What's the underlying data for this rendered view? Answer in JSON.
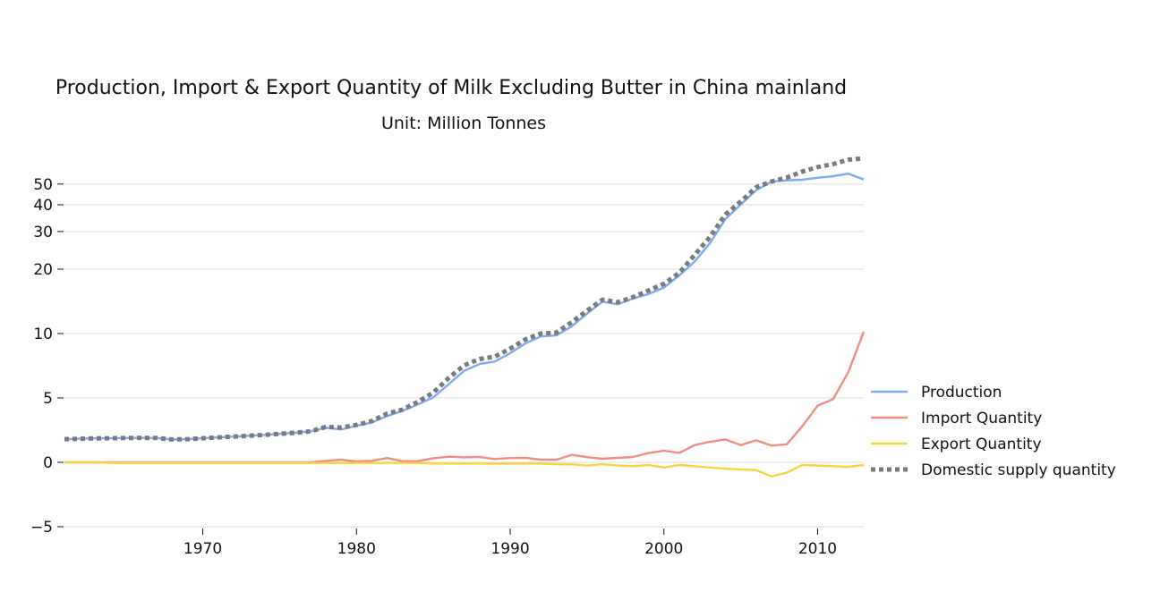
{
  "chart_data": {
    "type": "line",
    "title": "Production, Import & Export Quantity of Milk Excluding Butter in China mainland",
    "subtitle": "Unit: Million Tonnes",
    "xlabel": "",
    "ylabel": "",
    "xlim": [
      1961,
      2013
    ],
    "y_ticks": [
      -5,
      0,
      5,
      10,
      20,
      30,
      40,
      50
    ],
    "y_scale_note": "symmetric log-like scale: linear between -5 and 5, logarithmic above",
    "x_ticks": [
      1970,
      1980,
      1990,
      2000,
      2010
    ],
    "grid": "horizontal",
    "legend_position": "right",
    "x": [
      1961,
      1962,
      1963,
      1964,
      1965,
      1966,
      1967,
      1968,
      1969,
      1970,
      1971,
      1972,
      1973,
      1974,
      1975,
      1976,
      1977,
      1978,
      1979,
      1980,
      1981,
      1982,
      1983,
      1984,
      1985,
      1986,
      1987,
      1988,
      1989,
      1990,
      1991,
      1992,
      1993,
      1994,
      1995,
      1996,
      1997,
      1998,
      1999,
      2000,
      2001,
      2002,
      2003,
      2004,
      2005,
      2006,
      2007,
      2008,
      2009,
      2010,
      2011,
      2012,
      2013
    ],
    "series": [
      {
        "name": "Production",
        "color": "#7eaaf5",
        "style": "solid",
        "values": [
          1.8,
          1.83,
          1.86,
          1.87,
          1.89,
          1.9,
          1.89,
          1.78,
          1.8,
          1.87,
          1.94,
          2.0,
          2.06,
          2.13,
          2.21,
          2.3,
          2.4,
          2.69,
          2.55,
          2.84,
          3.1,
          3.6,
          4.0,
          4.5,
          5.03,
          5.8,
          6.7,
          7.2,
          7.4,
          8.1,
          9.0,
          9.7,
          9.8,
          10.8,
          12.4,
          14.1,
          13.7,
          14.6,
          15.3,
          16.4,
          18.7,
          21.7,
          26.5,
          34.3,
          40.1,
          46.8,
          51.4,
          52.0,
          52.4,
          53.5,
          54.4,
          55.9,
          52.6
        ]
      },
      {
        "name": "Import Quantity",
        "color": "#f28b82",
        "style": "solid",
        "values": [
          0.0,
          0.0,
          0.0,
          0.0,
          0.0,
          0.0,
          0.0,
          0.0,
          0.0,
          0.0,
          0.0,
          0.0,
          0.0,
          0.0,
          0.0,
          0.0,
          0.0,
          0.11,
          0.2,
          0.07,
          0.12,
          0.33,
          0.08,
          0.1,
          0.32,
          0.44,
          0.39,
          0.42,
          0.26,
          0.33,
          0.35,
          0.2,
          0.2,
          0.58,
          0.4,
          0.28,
          0.35,
          0.42,
          0.72,
          0.9,
          0.73,
          1.34,
          1.6,
          1.78,
          1.34,
          1.71,
          1.3,
          1.4,
          2.8,
          4.4,
          4.9,
          6.6,
          10.2
        ]
      },
      {
        "name": "Export Quantity",
        "color": "#f7d43a",
        "style": "solid",
        "values": [
          0.0,
          0.0,
          0.0,
          -0.05,
          -0.05,
          -0.05,
          -0.05,
          -0.05,
          -0.05,
          -0.05,
          -0.05,
          -0.05,
          -0.05,
          -0.05,
          -0.05,
          -0.05,
          -0.05,
          -0.05,
          -0.05,
          -0.05,
          -0.05,
          -0.05,
          -0.05,
          -0.05,
          -0.1,
          -0.1,
          -0.1,
          -0.1,
          -0.1,
          -0.1,
          -0.1,
          -0.1,
          -0.15,
          -0.15,
          -0.25,
          -0.15,
          -0.25,
          -0.3,
          -0.2,
          -0.4,
          -0.2,
          -0.3,
          -0.4,
          -0.5,
          -0.55,
          -0.6,
          -1.1,
          -0.8,
          -0.2,
          -0.25,
          -0.3,
          -0.35,
          -0.2
        ]
      },
      {
        "name": "Domestic supply quantity",
        "color": "#7a7a7a",
        "style": "dotted",
        "values": [
          1.8,
          1.83,
          1.86,
          1.87,
          1.89,
          1.9,
          1.89,
          1.78,
          1.8,
          1.87,
          1.94,
          2.0,
          2.06,
          2.13,
          2.21,
          2.3,
          2.4,
          2.75,
          2.7,
          2.9,
          3.2,
          3.8,
          4.1,
          4.7,
          5.3,
          6.2,
          7.1,
          7.6,
          7.8,
          8.5,
          9.4,
          10.0,
          10.1,
          11.3,
          12.8,
          14.4,
          14.0,
          14.8,
          15.9,
          17.1,
          19.2,
          23.3,
          28.3,
          36.0,
          41.4,
          48.3,
          51.4,
          53.6,
          57.2,
          60.0,
          62.0,
          65.0,
          66.0
        ]
      }
    ]
  }
}
